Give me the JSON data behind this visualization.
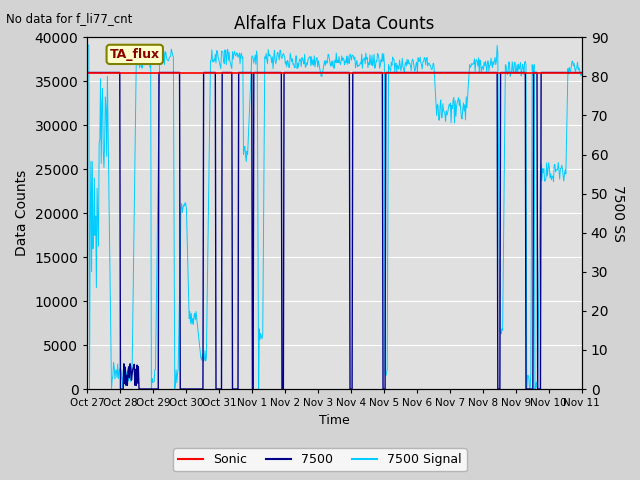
{
  "title": "Alfalfa Flux Data Counts",
  "subtitle": "No data for f_li77_cnt",
  "xlabel": "Time",
  "ylabel_left": "Data Counts",
  "ylabel_right": "7500 SS",
  "legend_label_box": "TA_flux",
  "legend_entries": [
    "Sonic",
    "7500",
    "7500 Signal"
  ],
  "legend_colors": [
    "#ff0000",
    "#00008b",
    "#00ccff"
  ],
  "background_color": "#d3d3d3",
  "plot_bg_color": "#e0e0e0",
  "ylim_left": [
    0,
    40000
  ],
  "ylim_right": [
    0,
    90
  ],
  "yticks_left": [
    0,
    5000,
    10000,
    15000,
    20000,
    25000,
    30000,
    35000,
    40000
  ],
  "yticks_right": [
    0,
    10,
    20,
    30,
    40,
    50,
    60,
    70,
    80,
    90
  ],
  "sonic_value": 36000,
  "sonic_color": "#ff0000",
  "line_7500_color": "#00008b",
  "line_signal_color": "#00ccff",
  "xtick_labels": [
    "Oct 27",
    "Oct 28",
    "Oct 29",
    "Oct 30",
    "Oct 31",
    "Nov 1",
    "Nov 2",
    "Nov 3",
    "Nov 4",
    "Nov 5",
    "Nov 6",
    "Nov 7",
    "Nov 8",
    "Nov 9",
    "Nov 10",
    "Nov 11"
  ]
}
